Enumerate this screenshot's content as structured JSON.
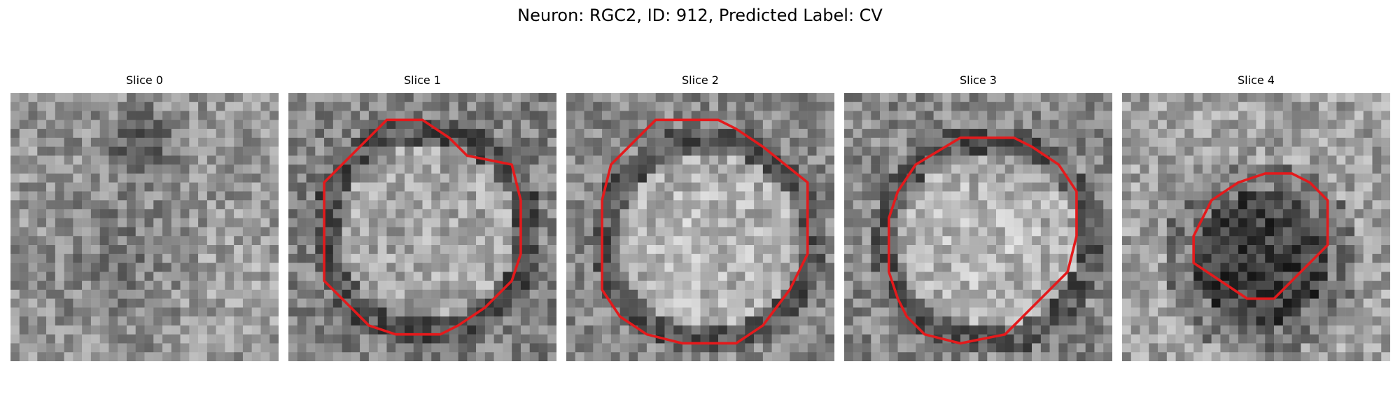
{
  "figure": {
    "title": "Neuron: RGC2, ID: 912, Predicted Label: CV",
    "panels": [
      {
        "title": "Slice 0",
        "has_contour": false,
        "tone": "dark-blob"
      },
      {
        "title": "Slice 1",
        "has_contour": true,
        "tone": "bright-ring"
      },
      {
        "title": "Slice 2",
        "has_contour": true,
        "tone": "bright"
      },
      {
        "title": "Slice 3",
        "has_contour": true,
        "tone": "bright"
      },
      {
        "title": "Slice 4",
        "has_contour": true,
        "tone": "dark"
      }
    ],
    "contour_color": "#e41a1c",
    "colormap": "grayscale"
  }
}
